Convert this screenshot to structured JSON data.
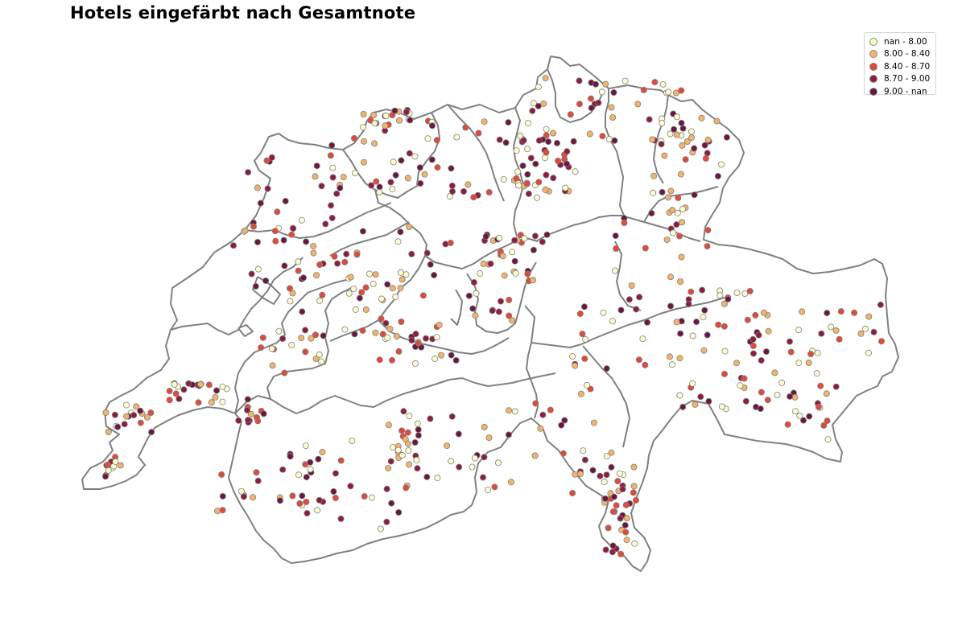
{
  "title": "Hotels eingefärbt nach Gesamtnote",
  "legend": {
    "placement": "top-right",
    "items": [
      {
        "label": "nan - 8.00",
        "color": "#fffdd0",
        "edge": "#5e9e5e"
      },
      {
        "label": "8.00 - 8.40",
        "color": "#f2b36a",
        "edge": "#888888"
      },
      {
        "label": "8.40 - 8.70",
        "color": "#e04a3a",
        "edge": "#888888"
      },
      {
        "label": "8.70 - 9.00",
        "color": "#8c1d3f",
        "edge": "#888888"
      },
      {
        "label": "9.00 - nan",
        "color": "#6b1740",
        "edge": "#888888"
      }
    ]
  },
  "map": {
    "country": "Switzerland",
    "boundary_color": "#808080",
    "point_edge_color": "#7f7f7f"
  }
}
